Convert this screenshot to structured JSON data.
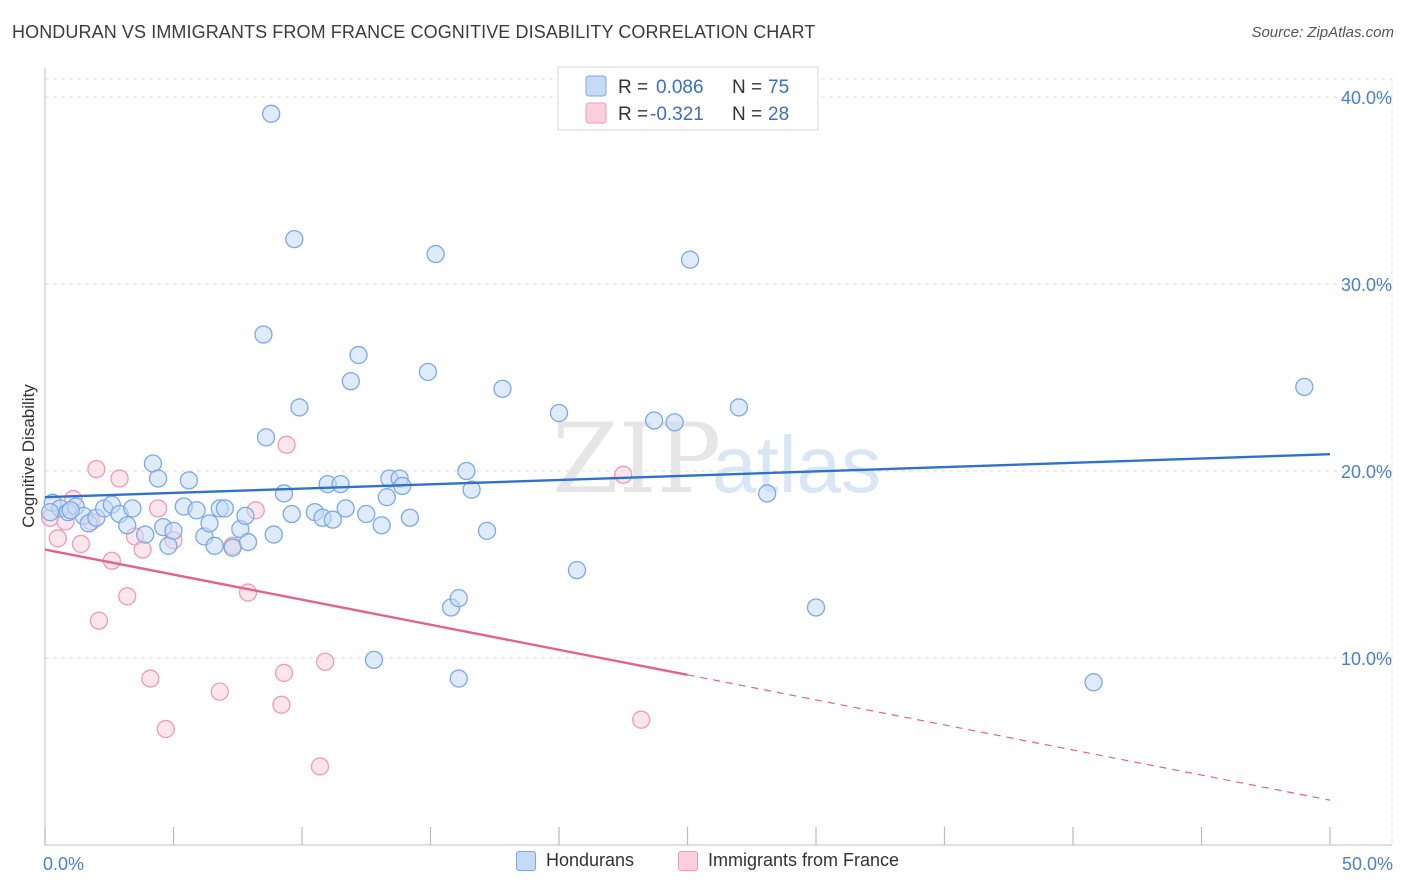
{
  "title": "HONDURAN VS IMMIGRANTS FROM FRANCE COGNITIVE DISABILITY CORRELATION CHART",
  "source": "Source: ZipAtlas.com",
  "watermark": {
    "part1": "ZIP",
    "part2": "atlas"
  },
  "colors": {
    "blue": "#7aaae6",
    "blue_fill": "#c5daf5",
    "blue_line": "#2f72c9",
    "pink": "#f29ab6",
    "pink_fill": "#fbd0dd",
    "pink_line": "#e0648f",
    "tick_label": "#4a7fcc",
    "grid": "#dddddd"
  },
  "legend_top": [
    {
      "r_label": "R =",
      "r_value": "0.086",
      "n_label": "N =",
      "n_value": "75",
      "series": "blue"
    },
    {
      "r_label": "R =",
      "r_value": "-0.321",
      "n_label": "N =",
      "n_value": "28",
      "series": "pink"
    }
  ],
  "legend_bottom": [
    {
      "label": "Hondurans",
      "series": "blue"
    },
    {
      "label": "Immigrants from France",
      "series": "pink"
    }
  ],
  "chart_data": {
    "type": "scatter",
    "title": "HONDURAN VS IMMIGRANTS FROM FRANCE COGNITIVE DISABILITY CORRELATION CHART",
    "xlabel": "",
    "ylabel": "Cognitive Disability",
    "xlim": [
      0,
      50
    ],
    "ylim": [
      0,
      40
    ],
    "x_tick_labels": [
      "0.0%",
      "50.0%"
    ],
    "y_ticks": [
      10,
      20,
      30,
      40
    ],
    "y_tick_labels": [
      "10.0%",
      "20.0%",
      "30.0%",
      "40.0%"
    ],
    "grid": true,
    "legend_position": "top-center",
    "series": [
      {
        "name": "Hondurans",
        "color": "blue",
        "trend": {
          "x0": 0,
          "y0": 18.6,
          "x1": 50,
          "y1": 20.9,
          "dashed_from": null
        },
        "points": [
          [
            0.3,
            18.3
          ],
          [
            0.6,
            18.0
          ],
          [
            0.9,
            17.8
          ],
          [
            1.2,
            18.1
          ],
          [
            1.5,
            17.6
          ],
          [
            1.7,
            17.2
          ],
          [
            2.0,
            17.5
          ],
          [
            2.3,
            18.0
          ],
          [
            2.6,
            18.2
          ],
          [
            2.9,
            17.7
          ],
          [
            3.2,
            17.1
          ],
          [
            3.4,
            18.0
          ],
          [
            3.9,
            16.6
          ],
          [
            4.2,
            20.4
          ],
          [
            4.4,
            19.6
          ],
          [
            4.6,
            17.0
          ],
          [
            4.8,
            16.0
          ],
          [
            5.0,
            16.8
          ],
          [
            5.4,
            18.1
          ],
          [
            5.6,
            19.5
          ],
          [
            5.9,
            17.9
          ],
          [
            6.2,
            16.5
          ],
          [
            6.4,
            17.2
          ],
          [
            6.6,
            16.0
          ],
          [
            6.8,
            18.0
          ],
          [
            7.0,
            18.0
          ],
          [
            7.3,
            15.9
          ],
          [
            7.6,
            16.9
          ],
          [
            7.8,
            17.6
          ],
          [
            7.9,
            16.2
          ],
          [
            8.5,
            27.3
          ],
          [
            8.6,
            21.8
          ],
          [
            8.8,
            39.1
          ],
          [
            8.9,
            16.6
          ],
          [
            9.3,
            18.8
          ],
          [
            9.6,
            17.7
          ],
          [
            9.7,
            32.4
          ],
          [
            9.9,
            23.4
          ],
          [
            10.5,
            17.8
          ],
          [
            10.8,
            17.5
          ],
          [
            11.0,
            19.3
          ],
          [
            11.2,
            17.4
          ],
          [
            11.5,
            19.3
          ],
          [
            11.7,
            18.0
          ],
          [
            11.9,
            24.8
          ],
          [
            12.2,
            26.2
          ],
          [
            12.5,
            17.7
          ],
          [
            12.8,
            9.9
          ],
          [
            13.1,
            17.1
          ],
          [
            13.3,
            18.6
          ],
          [
            13.4,
            19.6
          ],
          [
            13.8,
            19.6
          ],
          [
            13.9,
            19.2
          ],
          [
            14.2,
            17.5
          ],
          [
            14.9,
            25.3
          ],
          [
            15.2,
            31.6
          ],
          [
            15.8,
            12.7
          ],
          [
            16.1,
            13.2
          ],
          [
            16.1,
            8.9
          ],
          [
            16.4,
            20.0
          ],
          [
            16.6,
            19.0
          ],
          [
            17.2,
            16.8
          ],
          [
            17.8,
            24.4
          ],
          [
            20.0,
            23.1
          ],
          [
            20.7,
            14.7
          ],
          [
            23.7,
            22.7
          ],
          [
            24.5,
            22.6
          ],
          [
            25.1,
            31.3
          ],
          [
            27.0,
            23.4
          ],
          [
            28.1,
            18.8
          ],
          [
            30.0,
            12.7
          ],
          [
            40.8,
            8.7
          ],
          [
            49.0,
            24.5
          ],
          [
            0.2,
            17.8
          ],
          [
            1.0,
            17.9
          ]
        ]
      },
      {
        "name": "Immigrants from France",
        "color": "pink",
        "trend": {
          "x0": 0,
          "y0": 15.8,
          "x1": 50,
          "y1": 2.4,
          "dashed_from": 25.0
        },
        "points": [
          [
            0.2,
            17.5
          ],
          [
            0.5,
            16.4
          ],
          [
            0.8,
            17.3
          ],
          [
            1.1,
            18.5
          ],
          [
            1.4,
            16.1
          ],
          [
            1.8,
            17.3
          ],
          [
            2.0,
            20.1
          ],
          [
            2.1,
            12.0
          ],
          [
            2.6,
            15.2
          ],
          [
            2.9,
            19.6
          ],
          [
            3.2,
            13.3
          ],
          [
            3.5,
            16.5
          ],
          [
            3.8,
            15.8
          ],
          [
            4.1,
            8.9
          ],
          [
            4.4,
            18.0
          ],
          [
            4.7,
            6.2
          ],
          [
            5.0,
            16.3
          ],
          [
            6.8,
            8.2
          ],
          [
            7.3,
            16.0
          ],
          [
            7.9,
            13.5
          ],
          [
            8.2,
            17.9
          ],
          [
            9.4,
            21.4
          ],
          [
            9.3,
            9.2
          ],
          [
            9.2,
            7.5
          ],
          [
            10.7,
            4.2
          ],
          [
            10.9,
            9.8
          ],
          [
            22.5,
            19.8
          ],
          [
            23.2,
            6.7
          ]
        ]
      }
    ]
  }
}
